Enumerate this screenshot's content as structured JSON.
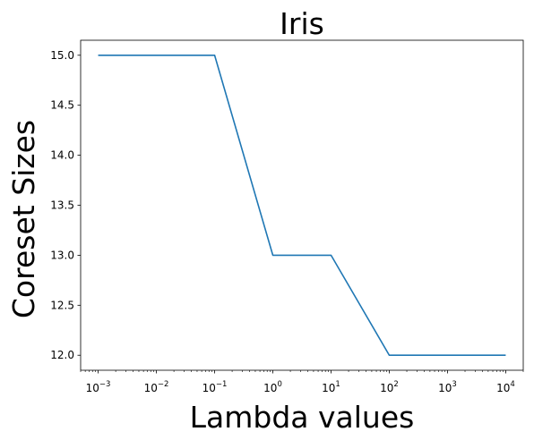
{
  "chart_data": {
    "type": "line",
    "title": "Iris",
    "xlabel": "Lambda values",
    "ylabel": "Coreset Sizes",
    "x_scale": "log",
    "x": [
      0.001,
      0.1,
      1,
      10,
      100,
      10000
    ],
    "series": [
      {
        "values": [
          15,
          15,
          13,
          13,
          12,
          12
        ],
        "color": "#1f77b4"
      }
    ],
    "xlim": [
      0.0005,
      20000
    ],
    "ylim": [
      11.85,
      15.15
    ],
    "x_ticks": [
      {
        "value": 0.001,
        "base": "10",
        "exp": "−3"
      },
      {
        "value": 0.01,
        "base": "10",
        "exp": "−2"
      },
      {
        "value": 0.1,
        "base": "10",
        "exp": "−1"
      },
      {
        "value": 1,
        "base": "10",
        "exp": "0"
      },
      {
        "value": 10,
        "base": "10",
        "exp": "1"
      },
      {
        "value": 100,
        "base": "10",
        "exp": "2"
      },
      {
        "value": 1000,
        "base": "10",
        "exp": "3"
      },
      {
        "value": 10000,
        "base": "10",
        "exp": "4"
      }
    ],
    "y_ticks": [
      {
        "value": 12.0,
        "label": "12.0"
      },
      {
        "value": 12.5,
        "label": "12.5"
      },
      {
        "value": 13.0,
        "label": "13.0"
      },
      {
        "value": 13.5,
        "label": "13.5"
      },
      {
        "value": 14.0,
        "label": "14.0"
      },
      {
        "value": 14.5,
        "label": "14.5"
      },
      {
        "value": 15.0,
        "label": "15.0"
      }
    ],
    "grid": false,
    "legend": "none"
  }
}
